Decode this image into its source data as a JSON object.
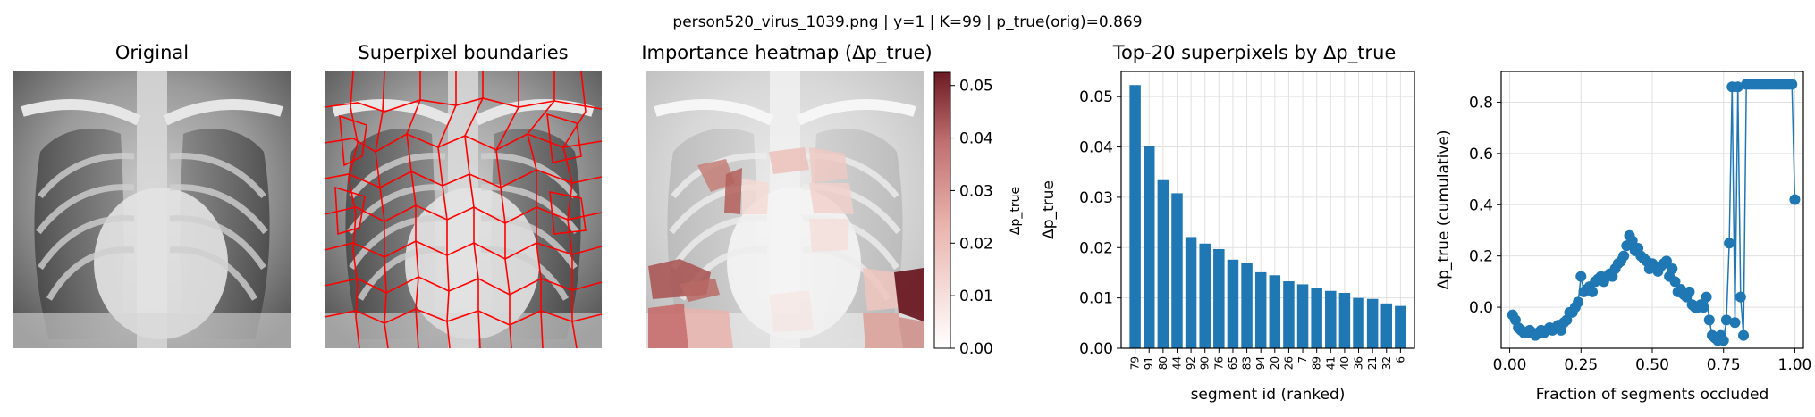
{
  "figure": {
    "suptitle": "person520_virus_1039.png | y=1 | K=99 | p_true(orig)=0.869"
  },
  "panels": {
    "original": {
      "title": "Original"
    },
    "superpixel": {
      "title": "Superpixel boundaries"
    },
    "heatmap": {
      "title": "Importance heatmap (Δp_true)",
      "colorbar_label": "Δp_true",
      "colorbar_ticks": [
        "0.00",
        "0.01",
        "0.02",
        "0.03",
        "0.04",
        "0.05"
      ],
      "colorbar_range": [
        0,
        0.0525
      ],
      "colors": {
        "low": "#ffffff",
        "mid": "#e9b3ad",
        "high": "#6b1a23"
      }
    }
  },
  "chart_data": [
    {
      "type": "bar",
      "title": "Top-20 superpixels by Δp_true",
      "xlabel": "segment id (ranked)",
      "ylabel": "Δp_true",
      "categories": [
        "79",
        "91",
        "80",
        "44",
        "92",
        "90",
        "76",
        "65",
        "83",
        "94",
        "20",
        "26",
        "7",
        "89",
        "41",
        "40",
        "36",
        "21",
        "32",
        "6"
      ],
      "values": [
        0.0523,
        0.0402,
        0.0334,
        0.0308,
        0.0221,
        0.0208,
        0.0197,
        0.0176,
        0.0169,
        0.0151,
        0.0145,
        0.0133,
        0.0127,
        0.012,
        0.0114,
        0.011,
        0.01,
        0.0098,
        0.0089,
        0.0084
      ],
      "ylim": [
        0,
        0.055
      ],
      "yticks": [
        "0.00",
        "0.01",
        "0.02",
        "0.03",
        "0.04",
        "0.05"
      ],
      "grid": true,
      "color": "#1f77b4"
    },
    {
      "type": "line",
      "xlabel": "Fraction of segments occluded",
      "ylabel": "Δp_true (cumulative)",
      "xlim": [
        -0.03,
        1.03
      ],
      "ylim": [
        -0.16,
        0.92
      ],
      "xticks": [
        "0.00",
        "0.25",
        "0.50",
        "0.75",
        "1.00"
      ],
      "yticks": [
        "0.0",
        "0.2",
        "0.4",
        "0.6",
        "0.8"
      ],
      "grid": true,
      "color": "#1f77b4",
      "x": [
        0.01,
        0.02,
        0.03,
        0.04,
        0.05,
        0.06,
        0.07,
        0.08,
        0.09,
        0.1,
        0.11,
        0.12,
        0.13,
        0.14,
        0.15,
        0.16,
        0.17,
        0.18,
        0.19,
        0.2,
        0.21,
        0.22,
        0.23,
        0.24,
        0.25,
        0.26,
        0.27,
        0.28,
        0.29,
        0.3,
        0.31,
        0.32,
        0.33,
        0.34,
        0.35,
        0.36,
        0.37,
        0.38,
        0.39,
        0.4,
        0.41,
        0.42,
        0.43,
        0.44,
        0.45,
        0.46,
        0.47,
        0.48,
        0.49,
        0.5,
        0.51,
        0.52,
        0.53,
        0.54,
        0.55,
        0.56,
        0.57,
        0.58,
        0.59,
        0.6,
        0.61,
        0.62,
        0.63,
        0.64,
        0.65,
        0.66,
        0.67,
        0.68,
        0.69,
        0.7,
        0.71,
        0.72,
        0.73,
        0.74,
        0.75,
        0.76,
        0.77,
        0.78,
        0.79,
        0.8,
        0.81,
        0.82,
        0.83,
        0.84,
        0.85,
        0.86,
        0.87,
        0.88,
        0.89,
        0.9,
        0.91,
        0.92,
        0.93,
        0.94,
        0.95,
        0.96,
        0.97,
        0.98,
        0.99,
        1.0
      ],
      "y": [
        -0.03,
        -0.05,
        -0.08,
        -0.09,
        -0.1,
        -0.1,
        -0.09,
        -0.1,
        -0.11,
        -0.1,
        -0.09,
        -0.1,
        -0.09,
        -0.08,
        -0.09,
        -0.08,
        -0.07,
        -0.09,
        -0.06,
        -0.05,
        -0.02,
        -0.02,
        0.0,
        0.02,
        0.12,
        0.06,
        0.07,
        0.08,
        0.06,
        0.1,
        0.11,
        0.12,
        0.1,
        0.12,
        0.13,
        0.12,
        0.15,
        0.17,
        0.18,
        0.2,
        0.24,
        0.28,
        0.26,
        0.22,
        0.23,
        0.2,
        0.19,
        0.18,
        0.15,
        0.17,
        0.16,
        0.14,
        0.16,
        0.17,
        0.18,
        0.12,
        0.15,
        0.1,
        0.06,
        0.07,
        0.05,
        0.04,
        0.06,
        0.01,
        0.0,
        0.0,
        0.01,
        0.0,
        0.04,
        -0.05,
        -0.11,
        -0.12,
        -0.13,
        -0.11,
        -0.13,
        -0.05,
        0.25,
        0.86,
        -0.06,
        0.86,
        0.04,
        -0.11,
        0.87,
        0.87,
        0.87,
        0.87,
        0.87,
        0.87,
        0.87,
        0.87,
        0.87,
        0.87,
        0.87,
        0.87,
        0.87,
        0.87,
        0.87,
        0.87,
        0.87,
        0.42
      ]
    }
  ]
}
